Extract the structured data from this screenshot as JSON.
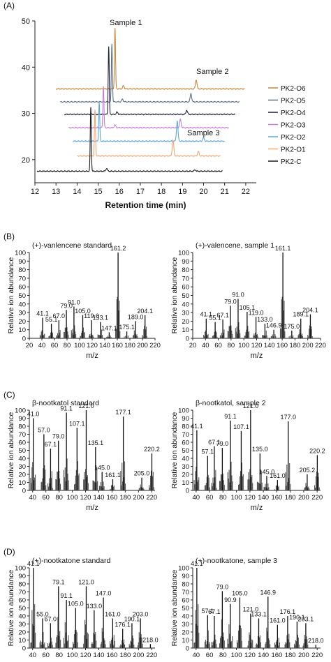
{
  "chart_data": [
    {
      "panel": "(A)",
      "type": "line",
      "xlabel": "Retention time (min)",
      "xlim": [
        12,
        22.5
      ],
      "ylim": [
        15,
        50
      ],
      "xticks": [
        "12",
        "13",
        "14",
        "15",
        "16",
        "17",
        "18",
        "19",
        "20",
        "21",
        "22"
      ],
      "yticks": [
        "20",
        "30",
        "40",
        "50"
      ],
      "annotations": [
        "Sample 1",
        "Sample 2",
        "Sample 3"
      ],
      "series": [
        {
          "name": "PK2-O6",
          "color": "#c8873a",
          "baseline": 35.3,
          "x": [
            13.0,
            21.95
          ],
          "peaks": [
            [
              15.8,
              13.2
            ],
            [
              16.2,
              0.7
            ],
            [
              19.65,
              2.0
            ]
          ]
        },
        {
          "name": "PK2-O5",
          "color": "#5e7185",
          "baseline": 32.5,
          "x": [
            13.2,
            21.7
          ],
          "peaks": [
            [
              15.65,
              12.6
            ],
            [
              16.15,
              0.6
            ],
            [
              19.4,
              1.8
            ]
          ]
        },
        {
          "name": "PK2-O4",
          "color": "#20203a",
          "baseline": 29.8,
          "x": [
            13.4,
            21.5
          ],
          "peaks": [
            [
              15.5,
              14.7
            ],
            [
              15.9,
              0.5
            ],
            [
              19.2,
              0.9
            ]
          ]
        },
        {
          "name": "PK2-O3",
          "color": "#c77fd6",
          "baseline": 26.9,
          "x": [
            13.6,
            21.2
          ],
          "peaks": [
            [
              15.25,
              9.0
            ],
            [
              15.8,
              0.6
            ],
            [
              18.9,
              1.8
            ]
          ]
        },
        {
          "name": "PK2-O2",
          "color": "#5aa9e0",
          "baseline": 24.0,
          "x": [
            13.8,
            21.0
          ],
          "peaks": [
            [
              15.05,
              8.5
            ],
            [
              18.75,
              4.4
            ],
            [
              20.0,
              0.8
            ]
          ]
        },
        {
          "name": "PK2-O1",
          "color": "#f0a877",
          "baseline": 20.8,
          "x": [
            14.0,
            20.8
          ],
          "peaks": [
            [
              14.85,
              10.0
            ],
            [
              18.55,
              3.4
            ],
            [
              19.75,
              1.0
            ]
          ]
        },
        {
          "name": "PK2-C",
          "color": "#1a1a1a",
          "baseline": 17.5,
          "x": [
            12.1,
            20.9
          ],
          "peaks": [
            [
              14.65,
              13.8
            ],
            [
              15.4,
              0.6
            ],
            [
              19.6,
              0.3
            ]
          ]
        }
      ]
    },
    {
      "panel": "(B)",
      "type": "bar",
      "plots": [
        {
          "title": "(+)-vanlencene standard",
          "xlabel": "m/z",
          "ylabel": "Relative ion abundance",
          "xlim": [
            20,
            220
          ],
          "ylim": [
            0,
            100
          ],
          "xticks": [
            "20",
            "40",
            "60",
            "80",
            "100",
            "120",
            "140",
            "160",
            "180",
            "200",
            "220"
          ],
          "yticks": [
            "0",
            "10",
            "20",
            "30",
            "40",
            "50",
            "60",
            "70",
            "80",
            "90",
            "100"
          ],
          "peaks": [
            [
              41.1,
              24
            ],
            [
              55.1,
              17
            ],
            [
              67.0,
              21
            ],
            [
              79.0,
              33
            ],
            [
              91.0,
              37
            ],
            [
              105.0,
              27
            ],
            [
              119.0,
              21
            ],
            [
              133.1,
              19
            ],
            [
              147.1,
              7
            ],
            [
              161.2,
              100
            ],
            [
              175.1,
              8
            ],
            [
              189.0,
              20
            ],
            [
              204.1,
              27
            ]
          ],
          "labels": [
            "41.1",
            "55.1",
            "67.0",
            "79.0",
            "91.0",
            "105.0",
            "119.0",
            "133.1",
            "147.1",
            "161.2",
            "175.1",
            "189.0",
            "204.1"
          ]
        },
        {
          "title": "(+)-valencene, sample 1",
          "xlabel": "m/z",
          "ylabel": "Relative ion abundance",
          "xlim": [
            20,
            220
          ],
          "ylim": [
            0,
            100
          ],
          "xticks": [
            "20",
            "40",
            "60",
            "80",
            "100",
            "120",
            "140",
            "160",
            "180",
            "200",
            "220"
          ],
          "yticks": [
            "0",
            "10",
            "20",
            "30",
            "40",
            "50",
            "60",
            "70",
            "80",
            "90",
            "100"
          ],
          "peaks": [
            [
              41.1,
              23
            ],
            [
              55.1,
              19
            ],
            [
              67.1,
              22
            ],
            [
              79.0,
              38
            ],
            [
              91.0,
              46
            ],
            [
              105.1,
              31
            ],
            [
              119.0,
              25
            ],
            [
              133.0,
              17
            ],
            [
              146.9,
              10
            ],
            [
              161.1,
              100
            ],
            [
              175.0,
              9
            ],
            [
              189.1,
              23
            ],
            [
              204.1,
              28
            ]
          ],
          "labels": [
            "41.1",
            "55.1",
            "67.1",
            "79.0",
            "91.0",
            "105.1",
            "119.0",
            "133.0",
            "146.9",
            "161.1",
            "175.0",
            "189.1",
            "204.1"
          ]
        }
      ]
    },
    {
      "panel": "(C)",
      "type": "bar",
      "plots": [
        {
          "title": "β-nootkatol standard",
          "xlabel": "m/z",
          "ylabel": "Relative ion abundance",
          "xlim": [
            35,
            225
          ],
          "ylim": [
            0,
            100
          ],
          "xticks": [
            "40",
            "60",
            "80",
            "100",
            "120",
            "140",
            "160",
            "180",
            "200",
            "220"
          ],
          "yticks": [
            "0",
            "10",
            "20",
            "30",
            "40",
            "50",
            "60",
            "70",
            "80",
            "90",
            "100"
          ],
          "peaks": [
            [
              41.0,
              90
            ],
            [
              57.0,
              70
            ],
            [
              67.1,
              52
            ],
            [
              79.0,
              62
            ],
            [
              91.1,
              97
            ],
            [
              107.1,
              78
            ],
            [
              121.0,
              100
            ],
            [
              135.1,
              54
            ],
            [
              145.0,
              23
            ],
            [
              161.1,
              14
            ],
            [
              177.1,
              92
            ],
            [
              205.0,
              16
            ],
            [
              220.2,
              46
            ]
          ],
          "labels": [
            "41.0",
            "57.0",
            "67.1",
            "79.0",
            "91.1",
            "107.1",
            "121.0",
            "135.1",
            "145.0",
            "161.1",
            "177.1",
            "205.0",
            "220.2"
          ]
        },
        {
          "title": "β-nootkatol, sample 2",
          "xlabel": "m/z",
          "ylabel": "Relative ion abundance",
          "xlim": [
            35,
            225
          ],
          "ylim": [
            0,
            100
          ],
          "xticks": [
            "40",
            "60",
            "80",
            "100",
            "120",
            "140",
            "160",
            "180",
            "200",
            "220"
          ],
          "yticks": [
            "0",
            "10",
            "20",
            "30",
            "40",
            "50",
            "60",
            "70",
            "80",
            "90",
            "100"
          ],
          "peaks": [
            [
              41.1,
              75
            ],
            [
              57.1,
              43
            ],
            [
              67.1,
              55
            ],
            [
              79.0,
              53
            ],
            [
              91.1,
              87
            ],
            [
              107.1,
              74
            ],
            [
              121.0,
              100
            ],
            [
              135.0,
              46
            ],
            [
              145.0,
              18
            ],
            [
              161.0,
              13
            ],
            [
              177.0,
              86
            ],
            [
              205.2,
              20
            ],
            [
              220.2,
              44
            ]
          ],
          "labels": [
            "41.1",
            "57.1",
            "67.1",
            "79.0",
            "91.1",
            "107.1",
            "121.0",
            "135.0",
            "145.0",
            "161.0",
            "177.0",
            "205.2",
            "220.2"
          ]
        }
      ]
    },
    {
      "panel": "(D)",
      "type": "bar",
      "plots": [
        {
          "title": "(+)-nootkatone standard",
          "xlabel": "m/z",
          "ylabel": "Relative ion abundance",
          "xlim": [
            35,
            225
          ],
          "ylim": [
            0,
            100
          ],
          "xticks": [
            "40",
            "60",
            "80",
            "100",
            "120",
            "140",
            "160",
            "180",
            "200",
            "220"
          ],
          "yticks": [
            "0",
            "10",
            "20",
            "30",
            "40",
            "50",
            "60",
            "70",
            "80",
            "90",
            "100"
          ],
          "peaks": [
            [
              41.1,
              100
            ],
            [
              55.0,
              37
            ],
            [
              67.0,
              31
            ],
            [
              79.1,
              77
            ],
            [
              91.1,
              60
            ],
            [
              105.0,
              50
            ],
            [
              121.0,
              77
            ],
            [
              133.0,
              47
            ],
            [
              147.0,
              63
            ],
            [
              161.0,
              37
            ],
            [
              176.1,
              24
            ],
            [
              190.1,
              31
            ],
            [
              203.0,
              37
            ],
            [
              218.0,
              5
            ]
          ],
          "labels": [
            "41.1",
            "55.0",
            "67.0",
            "79.1",
            "91.1",
            "105.0",
            "121.0",
            "133.0",
            "147.0",
            "161.0",
            "176.1",
            "190.1",
            "203.0",
            "218.0"
          ]
        },
        {
          "title": "(+)-nootkatone, sample 3",
          "xlabel": "m/z",
          "ylabel": "Relative ion abundance",
          "xlim": [
            35,
            225
          ],
          "ylim": [
            0,
            100
          ],
          "xticks": [
            "40",
            "60",
            "80",
            "100",
            "120",
            "140",
            "160",
            "180",
            "200",
            "220"
          ],
          "yticks": [
            "0",
            "10",
            "20",
            "30",
            "40",
            "50",
            "60",
            "70",
            "80",
            "90",
            "100"
          ],
          "peaks": [
            [
              41.1,
              100
            ],
            [
              57.1,
              41
            ],
            [
              67.1,
              40
            ],
            [
              79.0,
              71
            ],
            [
              90.9,
              55
            ],
            [
              105.0,
              63
            ],
            [
              121.0,
              43
            ],
            [
              133.1,
              37
            ],
            [
              146.9,
              64
            ],
            [
              161.0,
              29
            ],
            [
              176.1,
              40
            ],
            [
              190.1,
              33
            ],
            [
              203.1,
              31
            ],
            [
              218.0,
              4
            ]
          ],
          "labels": [
            "41.1",
            "57.1",
            "67.1",
            "79.0",
            "90.9",
            "105.0",
            "121.0",
            "133.1",
            "146.9",
            "161.0",
            "176.1",
            "190.1",
            "203.1",
            "218.0"
          ]
        }
      ]
    }
  ]
}
